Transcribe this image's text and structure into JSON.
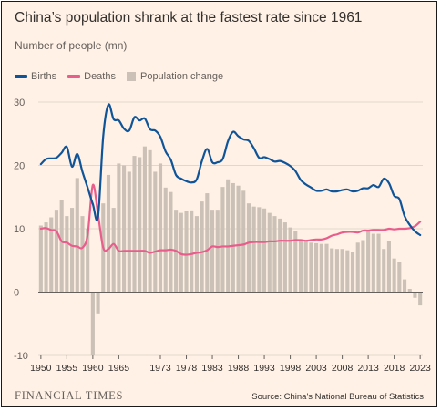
{
  "chart_data": {
    "type": "line",
    "title": "China’s population shrank at the fastest rate since 1961",
    "subtitle": "Number of people (mn)",
    "xlabel": "",
    "ylabel": "",
    "ylim": [
      -10,
      30
    ],
    "yticks": [
      30,
      20,
      10,
      0,
      -10
    ],
    "xticks": [
      "1950",
      "1955",
      "1960",
      "1965",
      "1973",
      "1978",
      "1983",
      "1988",
      "1993",
      "1998",
      "2003",
      "2008",
      "2013",
      "2018",
      "2023"
    ],
    "grid": true,
    "legend_position": "top-left",
    "x": [
      1950,
      1951,
      1952,
      1953,
      1954,
      1955,
      1956,
      1957,
      1958,
      1959,
      1960,
      1961,
      1962,
      1963,
      1964,
      1965,
      1966,
      1967,
      1968,
      1969,
      1970,
      1971,
      1972,
      1973,
      1974,
      1975,
      1976,
      1977,
      1978,
      1979,
      1980,
      1981,
      1982,
      1983,
      1984,
      1985,
      1986,
      1987,
      1988,
      1989,
      1990,
      1991,
      1992,
      1993,
      1994,
      1995,
      1996,
      1997,
      1998,
      1999,
      2000,
      2001,
      2002,
      2003,
      2004,
      2005,
      2006,
      2007,
      2008,
      2009,
      2010,
      2011,
      2012,
      2013,
      2014,
      2015,
      2016,
      2017,
      2018,
      2019,
      2020,
      2021,
      2022,
      2023
    ],
    "series": [
      {
        "name": "Births",
        "type": "line",
        "color": "#0f5499",
        "values": [
          20.2,
          21.0,
          21.1,
          21.2,
          22.0,
          22.9,
          19.8,
          21.8,
          19.0,
          16.5,
          13.9,
          11.9,
          24.6,
          29.6,
          27.3,
          27.1,
          25.8,
          25.5,
          27.6,
          27.1,
          27.4,
          25.7,
          25.5,
          24.5,
          22.2,
          20.9,
          18.5,
          17.9,
          17.5,
          17.3,
          17.8,
          20.7,
          22.6,
          20.5,
          20.5,
          21.0,
          23.8,
          25.3,
          24.6,
          24.1,
          23.9,
          22.7,
          21.2,
          21.3,
          21.0,
          20.6,
          20.7,
          20.4,
          19.9,
          19.1,
          17.7,
          17.0,
          16.5,
          16.0,
          16.0,
          16.2,
          15.9,
          15.9,
          16.1,
          16.2,
          15.9,
          16.0,
          16.4,
          16.4,
          16.9,
          16.6,
          17.9,
          17.2,
          15.2,
          14.7,
          12.0,
          10.6,
          9.6,
          9.0
        ],
        "note": "Births"
      },
      {
        "name": "Deaths",
        "type": "line",
        "color": "#e95d8c",
        "values": [
          10.0,
          10.1,
          9.8,
          9.6,
          8.0,
          7.8,
          7.3,
          7.2,
          7.0,
          9.0,
          16.9,
          12.3,
          7.0,
          6.8,
          7.6,
          6.5,
          6.5,
          6.5,
          6.5,
          6.5,
          6.5,
          6.2,
          6.4,
          6.6,
          6.6,
          6.7,
          6.5,
          6.0,
          5.9,
          6.0,
          6.2,
          6.3,
          6.6,
          7.2,
          7.1,
          7.2,
          7.2,
          7.3,
          7.4,
          7.5,
          7.8,
          7.9,
          7.9,
          7.9,
          8.0,
          8.0,
          8.1,
          8.1,
          8.1,
          8.2,
          8.2,
          8.1,
          8.2,
          8.3,
          8.3,
          8.5,
          8.9,
          9.1,
          9.4,
          9.5,
          9.5,
          9.4,
          9.7,
          9.7,
          9.8,
          9.8,
          9.8,
          10.0,
          9.9,
          10.0,
          10.0,
          10.1,
          10.4,
          11.1
        ]
      },
      {
        "name": "Population change",
        "type": "bar",
        "color": "#ccc1b7",
        "values": [
          10.5,
          11.0,
          11.8,
          13.0,
          14.5,
          12.0,
          13.3,
          18.0,
          12.0,
          10.0,
          -10.0,
          -3.5,
          14.0,
          18.5,
          13.3,
          20.3,
          20.0,
          19.0,
          21.5,
          21.3,
          23.0,
          22.4,
          19.0,
          20.3,
          16.5,
          15.8,
          13.0,
          12.5,
          12.8,
          12.9,
          12.0,
          14.3,
          15.6,
          13.0,
          13.0,
          16.6,
          17.8,
          17.2,
          16.8,
          16.0,
          14.0,
          13.5,
          13.4,
          13.2,
          12.5,
          12.0,
          11.6,
          11.0,
          10.2,
          9.6,
          8.3,
          8.0,
          7.8,
          7.7,
          7.6,
          7.6,
          6.9,
          6.8,
          6.8,
          6.6,
          6.3,
          7.8,
          8.2,
          9.8,
          9.2,
          9.2,
          6.8,
          8.0,
          5.3,
          4.7,
          2.0,
          0.5,
          -0.9,
          -2.1
        ]
      }
    ]
  },
  "legend": {
    "births": "Births",
    "deaths": "Deaths",
    "change": "Population change"
  },
  "footer": {
    "brand": "FINANCIAL TIMES",
    "source": "Source: China's National Bureau of Statistics"
  },
  "colors": {
    "background": "#fff1e5",
    "gridline": "#e3d6ca",
    "zero_line": "#66605c"
  }
}
